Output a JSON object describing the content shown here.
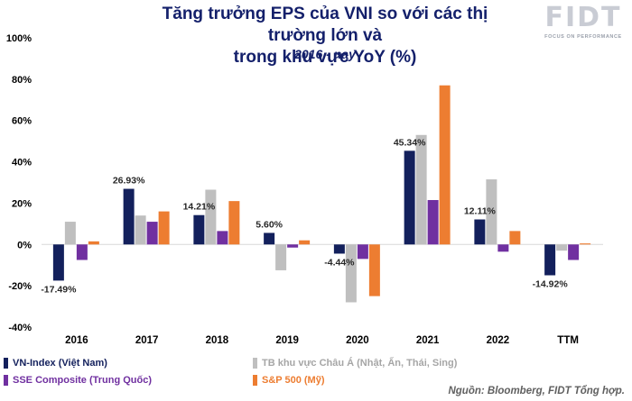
{
  "logo": {
    "text": "FIDT",
    "tagline": "FOCUS ON PERFORMANCE"
  },
  "source": "Nguồn: Bloomberg, FIDT Tổng hợp.",
  "chart_data": {
    "type": "bar",
    "title_line1": "Tăng trưởng EPS của VNI so với các thị trường lớn và",
    "title_line2": "trong khu vực YoY (%)",
    "subtitle": "2016 - nay",
    "categories": [
      "2016",
      "2017",
      "2018",
      "2019",
      "2020",
      "2021",
      "2022",
      "TTM"
    ],
    "ylim": [
      -40,
      100
    ],
    "yticks": [
      -40,
      -20,
      0,
      20,
      40,
      60,
      80,
      100
    ],
    "ytick_labels": [
      "-40%",
      "-20%",
      "0%",
      "20%",
      "40%",
      "60%",
      "80%",
      "100%"
    ],
    "series": [
      {
        "name": "VN-Index (Việt Nam)",
        "color": "#13205c",
        "values": [
          -17.49,
          26.93,
          14.21,
          5.6,
          -4.44,
          45.34,
          12.11,
          -14.92
        ],
        "labels": [
          "-17.49%",
          "26.93%",
          "14.21%",
          "5.60%",
          "-4.44%",
          "45.34%",
          "12.11%",
          "-14.92%"
        ]
      },
      {
        "name": "TB khu vực Châu Á (Nhật, Ấn, Thái, Sing)",
        "color": "#bfbfbf",
        "values": [
          11,
          14,
          26.5,
          -12.5,
          -28,
          53,
          31.5,
          -3
        ]
      },
      {
        "name": "SSE Composite (Trung Quốc)",
        "color": "#7030a0",
        "values": [
          -7.5,
          11,
          6.5,
          -1.5,
          -7,
          21.5,
          -3.5,
          -7.5
        ]
      },
      {
        "name": "S&P 500 (Mỹ)",
        "color": "#ed7d31",
        "values": [
          1.5,
          16,
          21,
          2,
          -25,
          77,
          6.5,
          0.5
        ]
      }
    ]
  }
}
